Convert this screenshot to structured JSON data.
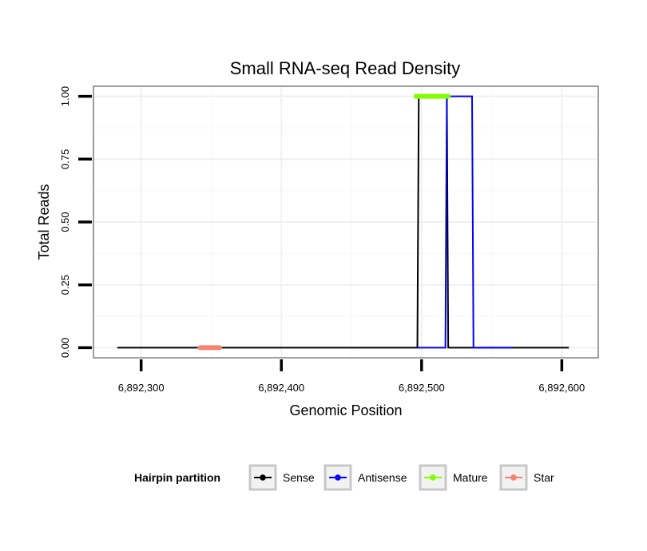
{
  "chart_data": {
    "type": "line",
    "title": "Small RNA-seq Read Density",
    "xlabel": "Genomic Position",
    "ylabel": "Total Reads",
    "xlim": [
      6892266,
      6892626
    ],
    "ylim": [
      -0.04,
      1.04
    ],
    "x_ticks": [
      6892300,
      6892400,
      6892500,
      6892600
    ],
    "x_tick_labels": [
      "6,892,300",
      "6,892,400",
      "6,892,500",
      "6,892,600"
    ],
    "y_ticks": [
      0,
      0.25,
      0.5,
      0.75,
      1.0
    ],
    "y_tick_labels": [
      "0.00",
      "0.25",
      "0.50",
      "0.75",
      "1.00"
    ],
    "grid": true,
    "legend": {
      "title": "Hairpin partition",
      "position": "bottom",
      "entries": [
        "Sense",
        "Antisense",
        "Mature",
        "Star"
      ]
    },
    "series": [
      {
        "name": "Sense",
        "color": "#000000",
        "width": "thin",
        "points": [
          [
            6892283,
            0
          ],
          [
            6892497,
            0
          ],
          [
            6892498,
            1
          ],
          [
            6892518,
            1
          ],
          [
            6892519,
            0
          ],
          [
            6892605,
            0
          ]
        ]
      },
      {
        "name": "Antisense",
        "color": "#0000ff",
        "width": "thin",
        "points": [
          [
            6892497,
            0
          ],
          [
            6892517,
            0
          ],
          [
            6892518,
            1
          ],
          [
            6892536,
            1
          ],
          [
            6892537,
            0
          ],
          [
            6892565,
            0
          ]
        ]
      },
      {
        "name": "Mature",
        "color": "#7fff00",
        "width": "thick",
        "points": [
          [
            6892496,
            1
          ],
          [
            6892519,
            1
          ]
        ]
      },
      {
        "name": "Star",
        "color": "#fa8072",
        "width": "thick",
        "points": [
          [
            6892342,
            0
          ],
          [
            6892356,
            0
          ]
        ]
      }
    ]
  }
}
